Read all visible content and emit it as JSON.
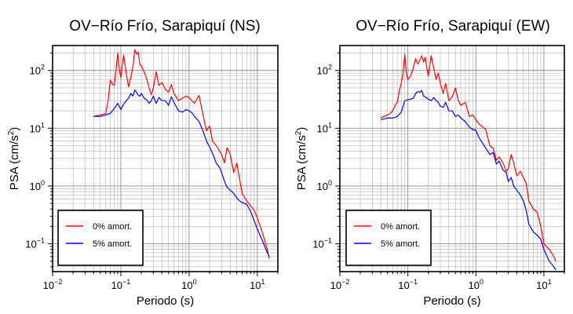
{
  "chart_data": [
    {
      "type": "line",
      "title": "OV−Río Frío, Sarapiquí (NS)",
      "xlabel": "Periodo (s)",
      "ylabel_main": "PSA (cm/s",
      "ylabel_sup": "2",
      "ylabel_tail": ")",
      "xscale": "log",
      "yscale": "log",
      "xlim": [
        0.01,
        20
      ],
      "ylim": [
        0.033,
        270
      ],
      "grid": true,
      "legend_position": "bottom-left",
      "xticks": [
        {
          "base": "10",
          "exp": "−2",
          "value": 0.01
        },
        {
          "base": "10",
          "exp": "−1",
          "value": 0.1
        },
        {
          "base": "10",
          "exp": "0",
          "value": 1
        },
        {
          "base": "10",
          "exp": "1",
          "value": 10
        }
      ],
      "yticks": [
        {
          "base": "10",
          "exp": "−1",
          "value": 0.1
        },
        {
          "base": "10",
          "exp": "0",
          "value": 1
        },
        {
          "base": "10",
          "exp": "1",
          "value": 10
        },
        {
          "base": "10",
          "exp": "2",
          "value": 100
        }
      ],
      "series": [
        {
          "name": "0% amort.",
          "color": "#ff0000",
          "x": [
            0.04,
            0.05,
            0.06,
            0.065,
            0.07,
            0.075,
            0.08,
            0.085,
            0.09,
            0.095,
            0.1,
            0.11,
            0.12,
            0.13,
            0.14,
            0.15,
            0.16,
            0.17,
            0.18,
            0.19,
            0.2,
            0.22,
            0.24,
            0.26,
            0.28,
            0.3,
            0.33,
            0.36,
            0.4,
            0.45,
            0.5,
            0.55,
            0.6,
            0.7,
            0.8,
            0.9,
            1.0,
            1.1,
            1.2,
            1.4,
            1.6,
            1.8,
            2.0,
            2.2,
            2.5,
            2.8,
            3.0,
            3.3,
            3.6,
            4.0,
            4.5,
            5.0,
            5.5,
            6.0,
            7.0,
            8.0,
            9.0,
            10,
            12,
            14,
            15
          ],
          "y": [
            16,
            17,
            18,
            30,
            68,
            58,
            55,
            100,
            200,
            105,
            75,
            185,
            90,
            52,
            75,
            115,
            230,
            190,
            210,
            125,
            120,
            95,
            70,
            50,
            38,
            50,
            95,
            55,
            62,
            47,
            42,
            57,
            40,
            30,
            33,
            36,
            34,
            30,
            27,
            37,
            17,
            9,
            11,
            6,
            5,
            4,
            3.5,
            2.5,
            4.6,
            3.6,
            1.7,
            2.5,
            1.3,
            0.75,
            0.55,
            0.45,
            0.38,
            0.28,
            0.15,
            0.08,
            0.055
          ]
        },
        {
          "name": "5% amort.",
          "color": "#0000ff",
          "x": [
            0.04,
            0.05,
            0.06,
            0.07,
            0.08,
            0.09,
            0.1,
            0.11,
            0.12,
            0.13,
            0.14,
            0.15,
            0.16,
            0.17,
            0.18,
            0.19,
            0.2,
            0.22,
            0.24,
            0.26,
            0.28,
            0.3,
            0.33,
            0.36,
            0.4,
            0.45,
            0.5,
            0.55,
            0.6,
            0.7,
            0.8,
            0.9,
            1.0,
            1.1,
            1.2,
            1.4,
            1.6,
            1.8,
            2.0,
            2.2,
            2.5,
            2.8,
            3.0,
            3.3,
            3.6,
            4.0,
            4.5,
            5.0,
            5.5,
            6.0,
            7.0,
            8.0,
            9.0,
            10,
            12,
            14,
            15
          ],
          "y": [
            16,
            16,
            17,
            18,
            22,
            27,
            21,
            26,
            30,
            33,
            40,
            36,
            46,
            42,
            37,
            36,
            40,
            33,
            31,
            27,
            30,
            36,
            27,
            34,
            30,
            30,
            25,
            35,
            28,
            20,
            19,
            21,
            20,
            18.5,
            16,
            13,
            9,
            6,
            4.7,
            3.7,
            2.5,
            2.1,
            1.7,
            1.2,
            0.95,
            0.85,
            0.75,
            0.62,
            0.55,
            0.52,
            0.48,
            0.36,
            0.25,
            0.18,
            0.11,
            0.07,
            0.06
          ]
        }
      ]
    },
    {
      "type": "line",
      "title": "OV−Río Frío, Sarapiquí (EW)",
      "xlabel": "Periodo (s)",
      "ylabel_main": "PSA (cm/s",
      "ylabel_sup": "2",
      "ylabel_tail": ")",
      "xscale": "log",
      "yscale": "log",
      "xlim": [
        0.01,
        20
      ],
      "ylim": [
        0.033,
        270
      ],
      "grid": true,
      "legend_position": "bottom-left",
      "xticks": [
        {
          "base": "10",
          "exp": "−2",
          "value": 0.01
        },
        {
          "base": "10",
          "exp": "−1",
          "value": 0.1
        },
        {
          "base": "10",
          "exp": "0",
          "value": 1
        },
        {
          "base": "10",
          "exp": "1",
          "value": 10
        }
      ],
      "yticks": [
        {
          "base": "10",
          "exp": "−1",
          "value": 0.1
        },
        {
          "base": "10",
          "exp": "0",
          "value": 1
        },
        {
          "base": "10",
          "exp": "1",
          "value": 10
        },
        {
          "base": "10",
          "exp": "2",
          "value": 100
        }
      ],
      "series": [
        {
          "name": "0% amort.",
          "color": "#ff0000",
          "x": [
            0.04,
            0.045,
            0.05,
            0.055,
            0.06,
            0.065,
            0.07,
            0.075,
            0.08,
            0.085,
            0.09,
            0.095,
            0.1,
            0.11,
            0.12,
            0.13,
            0.14,
            0.15,
            0.16,
            0.17,
            0.18,
            0.19,
            0.2,
            0.22,
            0.24,
            0.26,
            0.28,
            0.3,
            0.33,
            0.36,
            0.4,
            0.45,
            0.5,
            0.55,
            0.6,
            0.7,
            0.8,
            0.9,
            1.0,
            1.1,
            1.2,
            1.4,
            1.6,
            1.8,
            2.0,
            2.2,
            2.5,
            2.8,
            3.0,
            3.3,
            3.6,
            4.0,
            4.5,
            5.0,
            5.5,
            6.0,
            7.0,
            8.0,
            9.0,
            10,
            12,
            14,
            15
          ],
          "y": [
            15,
            16,
            17,
            18,
            20,
            25,
            28,
            45,
            60,
            90,
            190,
            90,
            70,
            80,
            110,
            160,
            130,
            150,
            180,
            140,
            170,
            110,
            80,
            180,
            110,
            70,
            90,
            60,
            40,
            60,
            30,
            35,
            50,
            30,
            25,
            28,
            16,
            17,
            14,
            12,
            11,
            9.5,
            5,
            4.5,
            2.8,
            3.2,
            2.5,
            1.8,
            2,
            3.5,
            2.5,
            1.5,
            1.8,
            1.4,
            1.1,
            0.55,
            0.4,
            0.35,
            0.2,
            0.1,
            0.08,
            0.06,
            0.05
          ]
        },
        {
          "name": "5% amort.",
          "color": "#0000ff",
          "x": [
            0.04,
            0.05,
            0.06,
            0.07,
            0.08,
            0.09,
            0.1,
            0.11,
            0.12,
            0.13,
            0.14,
            0.15,
            0.16,
            0.17,
            0.18,
            0.19,
            0.2,
            0.22,
            0.24,
            0.26,
            0.28,
            0.3,
            0.33,
            0.36,
            0.4,
            0.45,
            0.5,
            0.55,
            0.6,
            0.7,
            0.8,
            0.9,
            1.0,
            1.1,
            1.2,
            1.4,
            1.6,
            1.8,
            2.0,
            2.2,
            2.5,
            2.8,
            3.0,
            3.3,
            3.6,
            4.0,
            4.5,
            5.0,
            5.5,
            6.0,
            7.0,
            8.0,
            9.0,
            10,
            12,
            14,
            15
          ],
          "y": [
            14,
            15,
            15,
            16,
            19,
            30,
            31,
            32,
            33,
            40,
            43,
            42,
            45,
            36,
            35,
            33,
            32,
            30,
            34,
            30,
            28,
            24,
            23,
            28,
            20,
            20,
            16,
            17,
            15,
            13,
            10.5,
            9.5,
            9.2,
            7,
            6,
            4.5,
            3.5,
            3.8,
            2.4,
            2.7,
            1.9,
            1.7,
            1.2,
            1.4,
            1.0,
            0.85,
            0.7,
            0.55,
            0.38,
            0.22,
            0.16,
            0.14,
            0.12,
            0.08,
            0.05,
            0.04,
            0.035
          ]
        }
      ]
    }
  ]
}
